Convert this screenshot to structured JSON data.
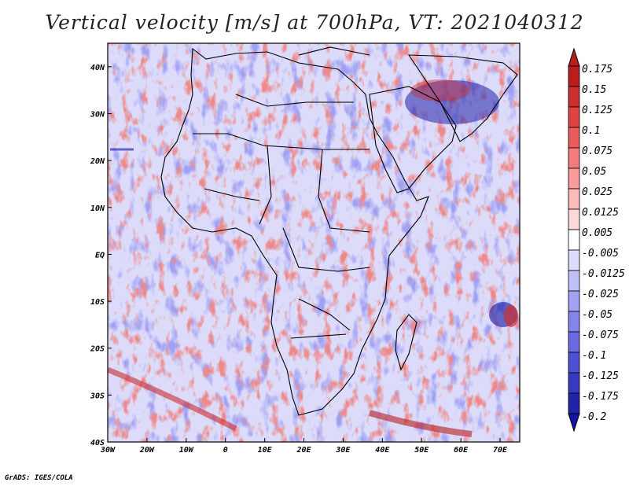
{
  "title": "Vertical velocity [m/s] at 700hPa, VT: 2021040312",
  "credit": "GrADS: IGES/COLA",
  "map": {
    "lon_range": [
      -30,
      75
    ],
    "lat_range": [
      -40,
      45
    ],
    "lon_ticks": [
      {
        "value": -30,
        "label": "30W"
      },
      {
        "value": -20,
        "label": "20W"
      },
      {
        "value": -10,
        "label": "10W"
      },
      {
        "value": 0,
        "label": "0"
      },
      {
        "value": 10,
        "label": "10E"
      },
      {
        "value": 20,
        "label": "20E"
      },
      {
        "value": 30,
        "label": "30E"
      },
      {
        "value": 40,
        "label": "40E"
      },
      {
        "value": 50,
        "label": "50E"
      },
      {
        "value": 60,
        "label": "60E"
      },
      {
        "value": 70,
        "label": "70E"
      }
    ],
    "lat_ticks": [
      {
        "value": 40,
        "label": "40N"
      },
      {
        "value": 30,
        "label": "30N"
      },
      {
        "value": 20,
        "label": "20N"
      },
      {
        "value": 10,
        "label": "10N"
      },
      {
        "value": 0,
        "label": "EQ"
      },
      {
        "value": -10,
        "label": "10S"
      },
      {
        "value": -20,
        "label": "20S"
      },
      {
        "value": -30,
        "label": "30S"
      },
      {
        "value": -40,
        "label": "40S"
      }
    ]
  },
  "colorbar": {
    "levels": [
      {
        "label": "0.175",
        "color": "#b81e1e"
      },
      {
        "label": "0.15",
        "color": "#cc2f2f"
      },
      {
        "label": "0.125",
        "color": "#de4444"
      },
      {
        "label": "0.1",
        "color": "#ea5c5c"
      },
      {
        "label": "0.075",
        "color": "#f27c7c"
      },
      {
        "label": "0.05",
        "color": "#f79b9b"
      },
      {
        "label": "0.025",
        "color": "#fbbcbc"
      },
      {
        "label": "0.0125",
        "color": "#fdd9d9"
      },
      {
        "label": "0.005",
        "color": "#ffffff"
      },
      {
        "label": "-0.005",
        "color": "#dcdcfc"
      },
      {
        "label": "-0.0125",
        "color": "#c0c0f8"
      },
      {
        "label": "-0.025",
        "color": "#a2a2f2"
      },
      {
        "label": "-0.05",
        "color": "#8484ec"
      },
      {
        "label": "-0.075",
        "color": "#6a6ae2"
      },
      {
        "label": "-0.1",
        "color": "#5050d4"
      },
      {
        "label": "-0.125",
        "color": "#3838c0"
      },
      {
        "label": "-0.175",
        "color": "#2222aa"
      },
      {
        "label": "-0.2",
        "color": "#1414a0"
      }
    ],
    "top_color": "#b81e1e",
    "bottom_color": "#1414a0"
  }
}
